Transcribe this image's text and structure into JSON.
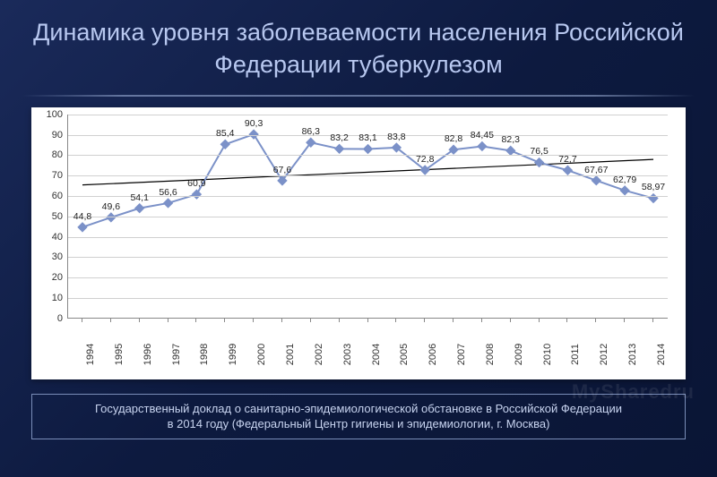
{
  "title": "Динамика уровня заболеваемости населения Российской Федерации туберкулезом",
  "source": {
    "line1": "Государственный доклад о санитарно-эпидемиологической обстановке в Российской Федерации",
    "line2": "в 2014 году (Федеральный Центр гигиены и эпидемиологии, г. Москва)"
  },
  "watermark": "MySharedru",
  "chart": {
    "type": "line",
    "background_color": "#ffffff",
    "grid_color": "#d0d0d0",
    "axis_color": "#888888",
    "text_color": "#333333",
    "series_color": "#7b91c8",
    "marker_fill": "#7b91c8",
    "marker_size": 5,
    "line_width": 2,
    "trend_color": "#000000",
    "trend_width": 1.2,
    "ylim": [
      0,
      100
    ],
    "ytick_step": 10,
    "yticks": [
      0,
      10,
      20,
      30,
      40,
      50,
      60,
      70,
      80,
      90,
      100
    ],
    "label_fontsize": 11,
    "point_label_fontsize": 10.5,
    "years": [
      "1994",
      "1995",
      "1996",
      "1997",
      "1998",
      "1999",
      "2000",
      "2001",
      "2002",
      "2003",
      "2004",
      "2005",
      "2006",
      "2007",
      "2008",
      "2009",
      "2010",
      "2011",
      "2012",
      "2013",
      "2014"
    ],
    "values": [
      44.8,
      49.6,
      54.1,
      56.6,
      60.9,
      85.4,
      90.3,
      67.6,
      86.3,
      83.2,
      83.1,
      83.8,
      72.8,
      82.8,
      84.45,
      82.3,
      76.5,
      72.7,
      67.67,
      62.79,
      58.97
    ],
    "value_labels": [
      "44,8",
      "49,6",
      "54,1",
      "56,6",
      "60,9",
      "85,4",
      "90,3",
      "67,6",
      "86,3",
      "83,2",
      "83,1",
      "83,8",
      "72,8",
      "82,8",
      "84,45",
      "82,3",
      "76,5",
      "72,7",
      "67,67",
      "62,79",
      "58,97"
    ],
    "trend": {
      "y_start": 65.5,
      "y_end": 78.0
    }
  }
}
